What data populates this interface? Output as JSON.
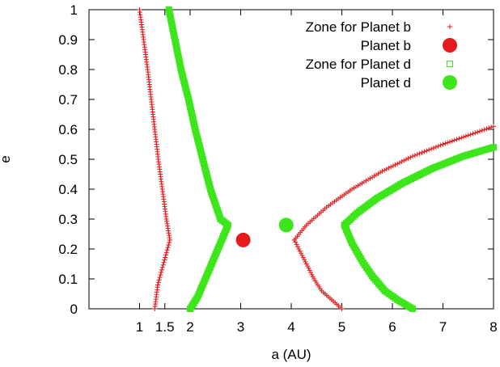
{
  "chart_data": {
    "type": "scatter",
    "title": "",
    "xlabel": "a (AU)",
    "ylabel": "e",
    "xlim": [
      0.0,
      8.0
    ],
    "ylim": [
      0.0,
      1.0
    ],
    "x_ticks": [
      1,
      1.5,
      2,
      3,
      4,
      5,
      6,
      7,
      8
    ],
    "x_tick_labels": [
      "1",
      "1.5",
      "2",
      "3",
      "4",
      "5",
      "6",
      "7",
      "8"
    ],
    "y_ticks": [
      0,
      0.1,
      0.2,
      0.3,
      0.4,
      0.5,
      0.6,
      0.7,
      0.8,
      0.9,
      1
    ],
    "y_tick_labels": [
      "0",
      "0.1",
      "0.2",
      "0.3",
      "0.4",
      "0.5",
      "0.6",
      "0.7",
      "0.8",
      "0.9",
      "1"
    ],
    "grid": false,
    "legend_position": "top-right",
    "series": [
      {
        "name": "Zone for Planet b",
        "color": "#e41a1c",
        "marker": "plus",
        "curves": [
          [
            [
              1.0,
              1.0
            ],
            [
              1.08,
              0.9
            ],
            [
              1.16,
              0.8
            ],
            [
              1.23,
              0.7
            ],
            [
              1.3,
              0.6
            ],
            [
              1.37,
              0.5
            ],
            [
              1.45,
              0.4
            ],
            [
              1.53,
              0.3
            ],
            [
              1.6,
              0.23
            ],
            [
              1.52,
              0.18
            ],
            [
              1.44,
              0.13
            ],
            [
              1.36,
              0.08
            ],
            [
              1.3,
              0.0
            ]
          ],
          [
            [
              4.06,
              0.23
            ],
            [
              4.15,
              0.2
            ],
            [
              4.3,
              0.15
            ],
            [
              4.45,
              0.1
            ],
            [
              4.6,
              0.06
            ],
            [
              4.8,
              0.03
            ],
            [
              5.0,
              0.0
            ]
          ],
          [
            [
              4.06,
              0.23
            ],
            [
              4.3,
              0.28
            ],
            [
              4.7,
              0.34
            ],
            [
              5.2,
              0.4
            ],
            [
              5.8,
              0.46
            ],
            [
              6.4,
              0.51
            ],
            [
              7.0,
              0.55
            ],
            [
              7.5,
              0.58
            ],
            [
              8.0,
              0.61
            ]
          ]
        ]
      },
      {
        "name": "Planet b",
        "color": "#e41a1c",
        "marker": "circle",
        "points": [
          [
            3.05,
            0.23
          ]
        ]
      },
      {
        "name": "Zone for Planet d",
        "color": "#3ce61a",
        "marker": "square",
        "curves": [
          [
            [
              1.58,
              1.0
            ],
            [
              1.7,
              0.9
            ],
            [
              1.82,
              0.8
            ],
            [
              1.97,
              0.7
            ],
            [
              2.1,
              0.6
            ],
            [
              2.25,
              0.5
            ],
            [
              2.4,
              0.4
            ],
            [
              2.6,
              0.3
            ],
            [
              2.75,
              0.28
            ],
            [
              2.6,
              0.22
            ],
            [
              2.45,
              0.16
            ],
            [
              2.3,
              0.1
            ],
            [
              2.15,
              0.04
            ],
            [
              2.0,
              0.0
            ]
          ],
          [
            [
              5.05,
              0.28
            ],
            [
              5.2,
              0.22
            ],
            [
              5.4,
              0.16
            ],
            [
              5.6,
              0.11
            ],
            [
              5.85,
              0.06
            ],
            [
              6.1,
              0.03
            ],
            [
              6.4,
              0.0
            ]
          ],
          [
            [
              5.05,
              0.28
            ],
            [
              5.3,
              0.32
            ],
            [
              5.7,
              0.37
            ],
            [
              6.2,
              0.42
            ],
            [
              6.8,
              0.47
            ],
            [
              7.4,
              0.51
            ],
            [
              8.0,
              0.54
            ]
          ]
        ]
      },
      {
        "name": "Planet d",
        "color": "#3ce61a",
        "marker": "circle",
        "points": [
          [
            3.9,
            0.28
          ]
        ]
      }
    ]
  }
}
